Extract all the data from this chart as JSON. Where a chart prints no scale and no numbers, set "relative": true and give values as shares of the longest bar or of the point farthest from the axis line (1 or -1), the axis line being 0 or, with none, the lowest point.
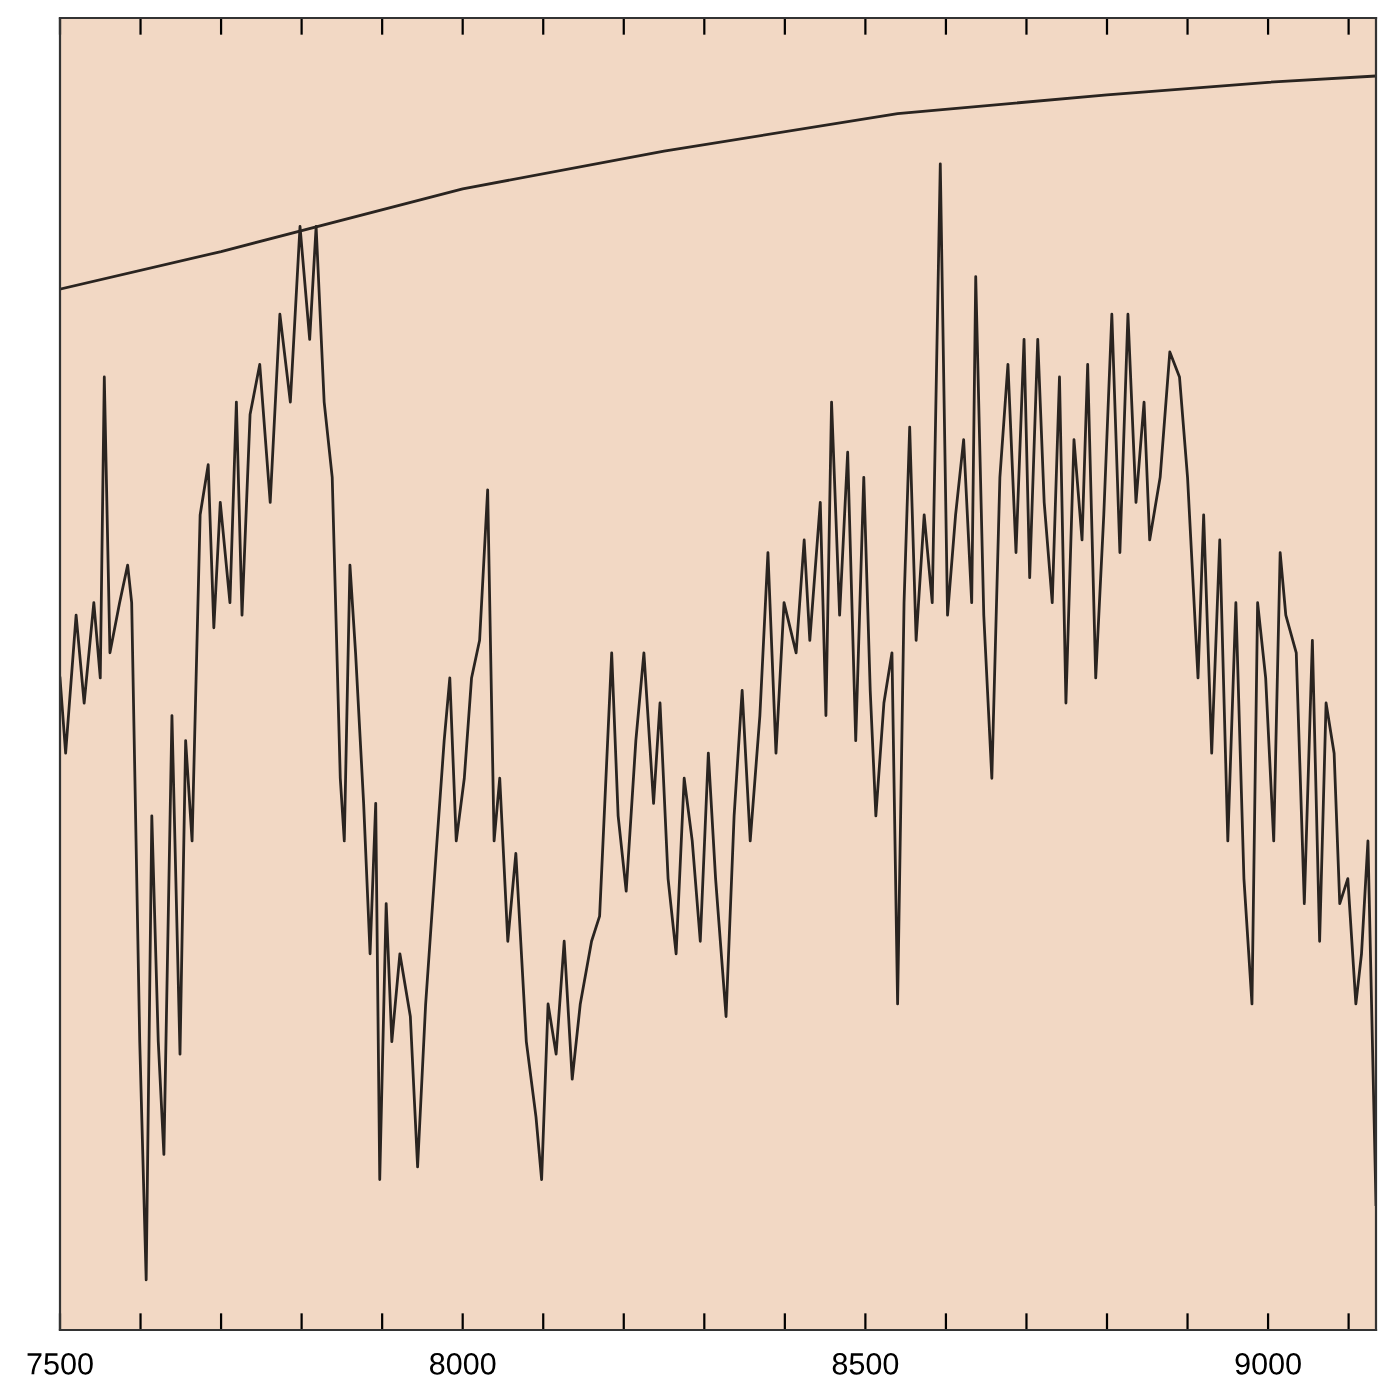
{
  "chart_data": {
    "type": "line",
    "relative": true,
    "xlim": [
      7500,
      9134
    ],
    "xticks": [
      7500,
      {
        "value": 7600,
        "label": null
      },
      {
        "value": 7700,
        "label": null
      },
      {
        "value": 7800,
        "label": null
      },
      {
        "value": 7900,
        "label": null
      },
      8000,
      {
        "value": 8100,
        "label": null
      },
      {
        "value": 8200,
        "label": null
      },
      {
        "value": 8300,
        "label": null
      },
      {
        "value": 8400,
        "label": null
      },
      8500,
      {
        "value": 8600,
        "label": null
      },
      {
        "value": 8700,
        "label": null
      },
      {
        "value": 8800,
        "label": null
      },
      {
        "value": 8900,
        "label": null
      },
      9000,
      {
        "value": 9100,
        "label": null
      }
    ],
    "grid": false,
    "marker": "none",
    "line_style": "solid",
    "series": [
      {
        "color": "#2a2420",
        "x": [
          7500,
          7700,
          8000,
          8250,
          8540,
          8800,
          9000,
          9134
        ],
        "values": [
          0.83,
          0.86,
          0.91,
          0.94,
          0.97,
          0.985,
          0.995,
          1.0
        ]
      },
      {
        "color": "#2a2420",
        "x": [
          7500,
          7507,
          7520,
          7530,
          7542,
          7550,
          7555,
          7562,
          7574,
          7584,
          7589,
          7599,
          7607,
          7614,
          7622,
          7629,
          7639,
          7649,
          7656,
          7664,
          7674,
          7684,
          7691,
          7699,
          7711,
          7719,
          7726,
          7736,
          7748,
          7761,
          7773,
          7786,
          7798,
          7810,
          7818,
          7828,
          7838,
          7848,
          7853,
          7860,
          7867,
          7877,
          7885,
          7892,
          7897,
          7905,
          7912,
          7922,
          7935,
          7944,
          7954,
          7967,
          7977,
          7984,
          7992,
          8002,
          8011,
          8021,
          8031,
          8039,
          8046,
          8056,
          8066,
          8079,
          8091,
          8098,
          8106,
          8116,
          8126,
          8136,
          8146,
          8160,
          8170,
          8185,
          8193,
          8203,
          8215,
          8225,
          8237,
          8245,
          8255,
          8265,
          8275,
          8285,
          8295,
          8305,
          8314,
          8327,
          8337,
          8347,
          8357,
          8369,
          8379,
          8389,
          8399,
          8414,
          8424,
          8431,
          8444,
          8451,
          8458,
          8468,
          8478,
          8488,
          8498,
          8506,
          8513,
          8523,
          8533,
          8540,
          8548,
          8555,
          8563,
          8573,
          8583,
          8593,
          8602,
          8612,
          8622,
          8632,
          8637,
          8647,
          8657,
          8667,
          8677,
          8687,
          8697,
          8704,
          8714,
          8722,
          8732,
          8741,
          8749,
          8759,
          8769,
          8776,
          8786,
          8796,
          8806,
          8816,
          8826,
          8836,
          8846,
          8853,
          8866,
          8878,
          8890,
          8900,
          8913,
          8920,
          8930,
          8940,
          8950,
          8960,
          8970,
          8980,
          8987,
          8997,
          9007,
          9015,
          9022,
          9035,
          9045,
          9055,
          9064,
          9072,
          9082,
          9089,
          9099,
          9109,
          9116,
          9124,
          9134
        ],
        "values": [
          0.52,
          0.46,
          0.57,
          0.5,
          0.58,
          0.52,
          0.76,
          0.54,
          0.58,
          0.61,
          0.58,
          0.23,
          0.04,
          0.41,
          0.23,
          0.14,
          0.49,
          0.22,
          0.47,
          0.39,
          0.65,
          0.69,
          0.56,
          0.66,
          0.58,
          0.74,
          0.57,
          0.73,
          0.77,
          0.66,
          0.81,
          0.74,
          0.88,
          0.79,
          0.88,
          0.74,
          0.68,
          0.44,
          0.39,
          0.61,
          0.54,
          0.42,
          0.3,
          0.42,
          0.12,
          0.34,
          0.23,
          0.3,
          0.25,
          0.13,
          0.26,
          0.38,
          0.47,
          0.52,
          0.39,
          0.44,
          0.52,
          0.55,
          0.67,
          0.39,
          0.44,
          0.31,
          0.38,
          0.23,
          0.17,
          0.12,
          0.26,
          0.22,
          0.31,
          0.2,
          0.26,
          0.31,
          0.33,
          0.54,
          0.41,
          0.35,
          0.47,
          0.54,
          0.42,
          0.5,
          0.36,
          0.3,
          0.44,
          0.39,
          0.31,
          0.46,
          0.36,
          0.25,
          0.41,
          0.51,
          0.39,
          0.49,
          0.62,
          0.46,
          0.58,
          0.54,
          0.63,
          0.55,
          0.66,
          0.49,
          0.74,
          0.57,
          0.7,
          0.47,
          0.68,
          0.51,
          0.41,
          0.5,
          0.54,
          0.26,
          0.58,
          0.72,
          0.55,
          0.65,
          0.58,
          0.93,
          0.57,
          0.65,
          0.71,
          0.58,
          0.84,
          0.57,
          0.44,
          0.68,
          0.77,
          0.62,
          0.79,
          0.6,
          0.79,
          0.66,
          0.58,
          0.76,
          0.5,
          0.71,
          0.63,
          0.77,
          0.52,
          0.65,
          0.81,
          0.62,
          0.81,
          0.66,
          0.74,
          0.63,
          0.68,
          0.78,
          0.76,
          0.68,
          0.52,
          0.65,
          0.46,
          0.63,
          0.39,
          0.58,
          0.36,
          0.26,
          0.58,
          0.52,
          0.39,
          0.62,
          0.57,
          0.54,
          0.34,
          0.55,
          0.31,
          0.5,
          0.46,
          0.34,
          0.36,
          0.26,
          0.3,
          0.39,
          0.1
        ]
      }
    ]
  }
}
